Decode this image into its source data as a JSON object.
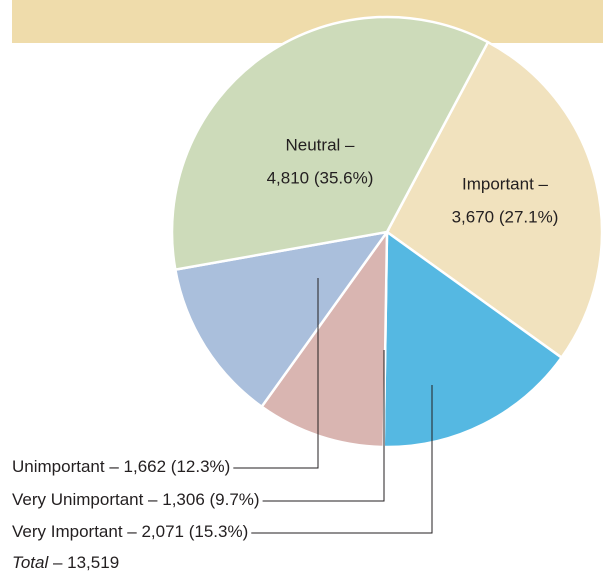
{
  "chart_data": {
    "type": "pie",
    "categories": [
      "Important –",
      "Very Important –",
      "Very Unimportant –",
      "Unimportant –",
      "Neutral –"
    ],
    "values": [
      3670,
      2071,
      1306,
      1662,
      4810
    ],
    "value_labels": [
      "3,670 (27.1%)",
      "2,071 (15.3%)",
      "1,306 (9.7%)",
      "1,662 (12.3%)",
      "4,810 (35.6%)"
    ],
    "colors": [
      "#f1e2be",
      "#55b8e2",
      "#d9b5b1",
      "#aabfdc",
      "#cddbba"
    ],
    "total": {
      "label": "Total",
      "value": 13519,
      "value_label": "– 13,519"
    }
  }
}
